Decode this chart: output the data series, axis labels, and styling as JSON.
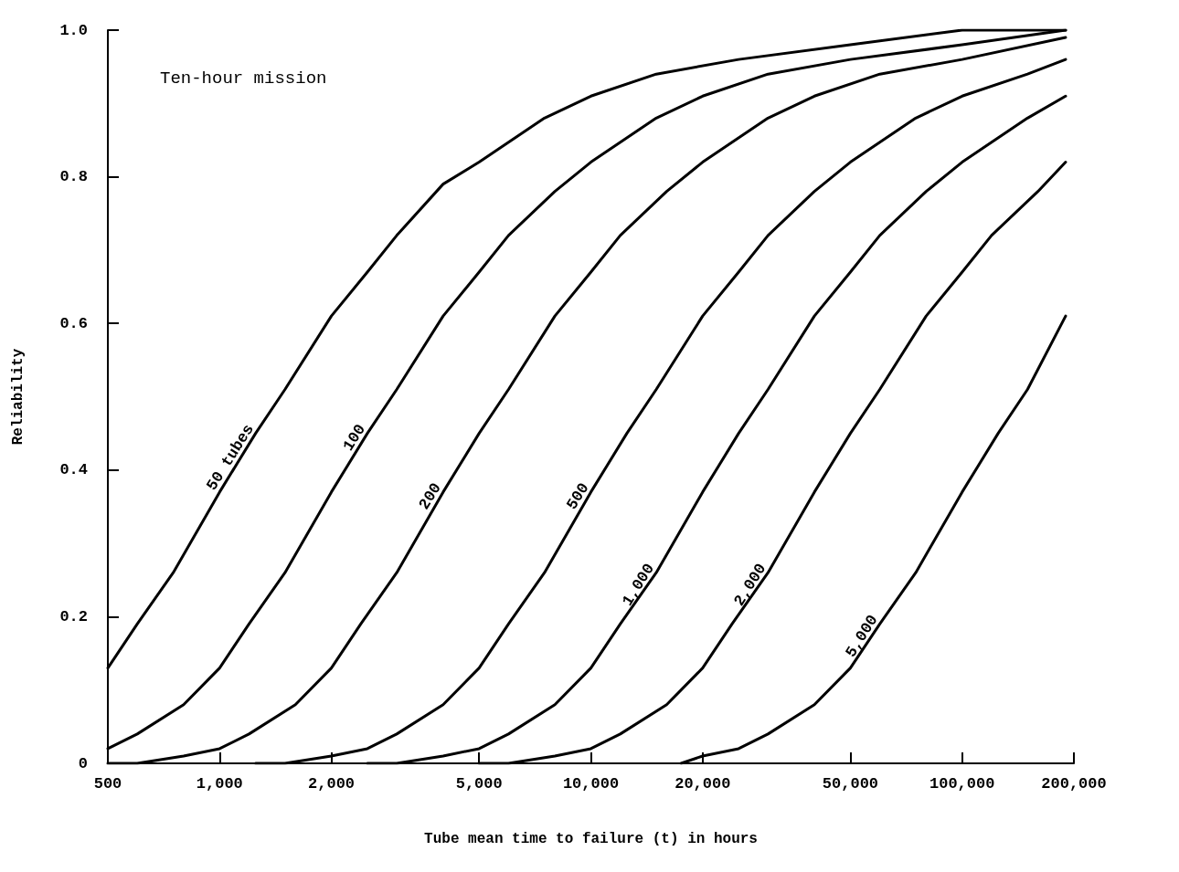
{
  "chart_data": {
    "type": "line",
    "xlabel": "Tube mean time to failure (t) in hours",
    "ylabel": "Reliability",
    "annotations": [
      "Ten-hour mission"
    ],
    "log": "x",
    "xlim": [
      500,
      200000
    ],
    "xticks": [
      500,
      {
        "value": 1000,
        "label": "1,000"
      },
      {
        "value": 2000,
        "label": "2,000"
      },
      {
        "value": 5000,
        "label": "5,000"
      },
      {
        "value": 10000,
        "label": "10,000"
      },
      {
        "value": 20000,
        "label": "20,000"
      },
      {
        "value": 50000,
        "label": "50,000"
      },
      {
        "value": 100000,
        "label": "100,000"
      },
      {
        "value": 200000,
        "label": "200,000"
      }
    ],
    "ylim": [
      0,
      1
    ],
    "yticks": [
      0,
      0.2,
      0.4,
      0.6,
      0.8,
      {
        "value": 1,
        "label": "1.0"
      }
    ],
    "marker": "none",
    "line_style": "solid",
    "series": [
      {
        "name": "50 tubes",
        "color": "#000000",
        "x": [
          500,
          600,
          750,
          1000,
          1250,
          1500,
          2000,
          2500,
          3000,
          4000,
          5000,
          7500,
          10000,
          15000,
          25000,
          50000,
          100000,
          190000
        ],
        "values": [
          0.13,
          0.19,
          0.26,
          0.37,
          0.45,
          0.51,
          0.61,
          0.67,
          0.72,
          0.79,
          0.82,
          0.88,
          0.91,
          0.94,
          0.96,
          0.98,
          1.0,
          1.0
        ]
      },
      {
        "name": "100",
        "color": "#000000",
        "x": [
          500,
          600,
          800,
          1000,
          1200,
          1500,
          2000,
          2500,
          3000,
          4000,
          5000,
          6000,
          8000,
          10000,
          15000,
          20000,
          30000,
          50000,
          100000,
          190000
        ],
        "values": [
          0.02,
          0.04,
          0.08,
          0.13,
          0.19,
          0.26,
          0.37,
          0.45,
          0.51,
          0.61,
          0.67,
          0.72,
          0.78,
          0.82,
          0.88,
          0.91,
          0.94,
          0.96,
          0.98,
          1.0
        ]
      },
      {
        "name": "200",
        "color": "#000000",
        "x": [
          500,
          600,
          800,
          1000,
          1200,
          1600,
          2000,
          2400,
          3000,
          4000,
          5000,
          6000,
          8000,
          10000,
          12000,
          16000,
          20000,
          30000,
          40000,
          60000,
          100000,
          190000
        ],
        "values": [
          0,
          0,
          0.01,
          0.02,
          0.04,
          0.08,
          0.13,
          0.19,
          0.26,
          0.37,
          0.45,
          0.51,
          0.61,
          0.67,
          0.72,
          0.78,
          0.82,
          0.88,
          0.91,
          0.94,
          0.96,
          0.99
        ]
      },
      {
        "name": "500",
        "color": "#000000",
        "x": [
          1250,
          1500,
          2000,
          2500,
          3000,
          4000,
          5000,
          6000,
          7500,
          10000,
          12500,
          15000,
          20000,
          25000,
          30000,
          40000,
          50000,
          75000,
          100000,
          150000,
          190000
        ],
        "values": [
          0,
          0,
          0.01,
          0.02,
          0.04,
          0.08,
          0.13,
          0.19,
          0.26,
          0.37,
          0.45,
          0.51,
          0.61,
          0.67,
          0.72,
          0.78,
          0.82,
          0.88,
          0.91,
          0.94,
          0.96
        ]
      },
      {
        "name": "1,000",
        "color": "#000000",
        "x": [
          2500,
          3000,
          4000,
          5000,
          6000,
          8000,
          10000,
          12000,
          15000,
          20000,
          25000,
          30000,
          40000,
          50000,
          60000,
          80000,
          100000,
          150000,
          190000
        ],
        "values": [
          0,
          0,
          0.01,
          0.02,
          0.04,
          0.08,
          0.13,
          0.19,
          0.26,
          0.37,
          0.45,
          0.51,
          0.61,
          0.67,
          0.72,
          0.78,
          0.82,
          0.88,
          0.91
        ]
      },
      {
        "name": "2,000",
        "color": "#000000",
        "x": [
          5000,
          6000,
          8000,
          10000,
          12000,
          16000,
          20000,
          24000,
          30000,
          40000,
          50000,
          60000,
          80000,
          100000,
          120000,
          160000,
          190000
        ],
        "values": [
          0,
          0,
          0.01,
          0.02,
          0.04,
          0.08,
          0.13,
          0.19,
          0.26,
          0.37,
          0.45,
          0.51,
          0.61,
          0.67,
          0.72,
          0.78,
          0.82
        ]
      },
      {
        "name": "5,000",
        "color": "#000000",
        "x": [
          17500,
          20000,
          25000,
          30000,
          40000,
          50000,
          60000,
          75000,
          100000,
          125000,
          150000,
          190000
        ],
        "values": [
          0,
          0.01,
          0.02,
          0.04,
          0.08,
          0.13,
          0.19,
          0.26,
          0.37,
          0.45,
          0.51,
          0.61
        ]
      }
    ]
  }
}
